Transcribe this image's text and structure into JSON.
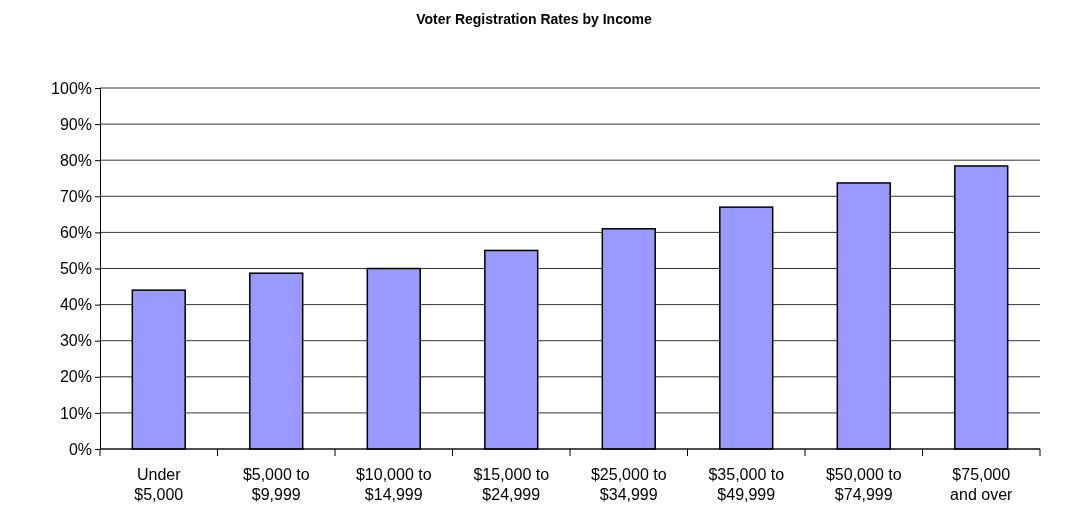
{
  "chart_data": {
    "type": "bar",
    "title": "Voter Registration Rates by Income",
    "categories": [
      "Under\n$5,000",
      "$5,000 to\n$9,999",
      "$10,000 to\n$14,999",
      "$15,000 to\n$24,999",
      "$25,000 to\n$34,999",
      "$35,000 to\n$49,999",
      "$50,000 to\n$74,999",
      "$75,000\nand over"
    ],
    "values": [
      44,
      48.7,
      50,
      55,
      61,
      67,
      73.7,
      78.4
    ],
    "color": "#9999ff",
    "ylim": [
      0,
      100
    ],
    "yticks": [
      {
        "value": 0,
        "label": "0%"
      },
      {
        "value": 10,
        "label": "10%"
      },
      {
        "value": 20,
        "label": "20%"
      },
      {
        "value": 30,
        "label": "30%"
      },
      {
        "value": 40,
        "label": "40%"
      },
      {
        "value": 50,
        "label": "50%"
      },
      {
        "value": 60,
        "label": "60%"
      },
      {
        "value": 70,
        "label": "70%"
      },
      {
        "value": 80,
        "label": "80%"
      },
      {
        "value": 90,
        "label": "90%"
      },
      {
        "value": 100,
        "label": "100%"
      }
    ],
    "grid": "y"
  }
}
